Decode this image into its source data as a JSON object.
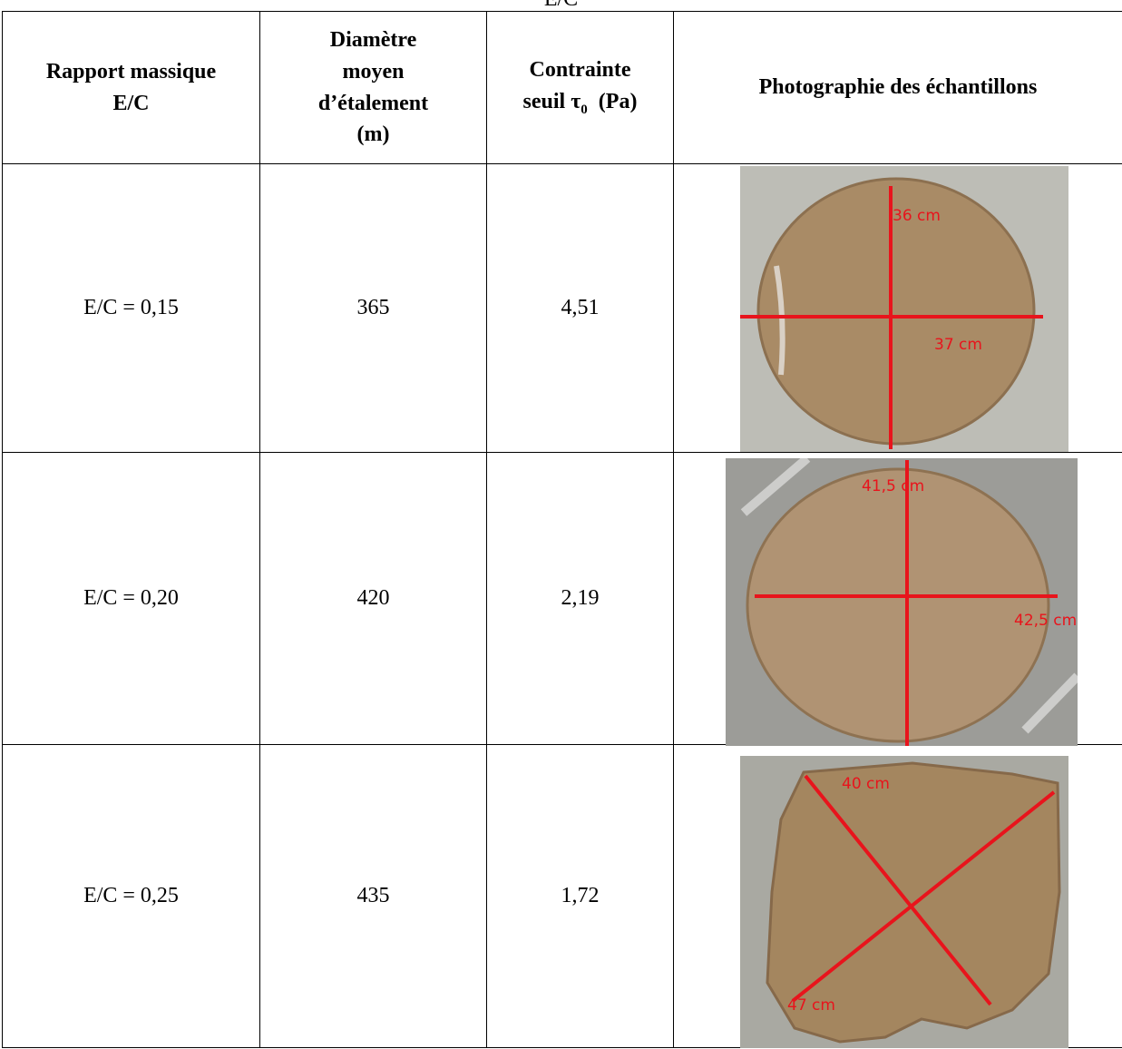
{
  "caption": "E/C",
  "table": {
    "header": {
      "col0": [
        "Rapport massique",
        "E/C"
      ],
      "col1": [
        "Diamètre",
        "moyen",
        "d’étalement",
        "(m)"
      ],
      "col2": {
        "line1": "Contrainte",
        "line2": "seuil τ",
        "sub": "0",
        "unit": "(Pa)"
      },
      "col3": "Photographie des échantillons"
    },
    "rows": [
      {
        "ratio": "E/C = 0,15",
        "diameter": "365",
        "stress": "4,51",
        "photo_labels": [
          "36 cm",
          "37 cm"
        ]
      },
      {
        "ratio": "E/C = 0,20",
        "diameter": "420",
        "stress": "2,19",
        "photo_labels": [
          "41,5 cm",
          "42,5 cm"
        ]
      },
      {
        "ratio": "E/C = 0,25",
        "diameter": "435",
        "stress": "1,72",
        "photo_labels": [
          "40 cm",
          "47 cm"
        ]
      }
    ]
  }
}
